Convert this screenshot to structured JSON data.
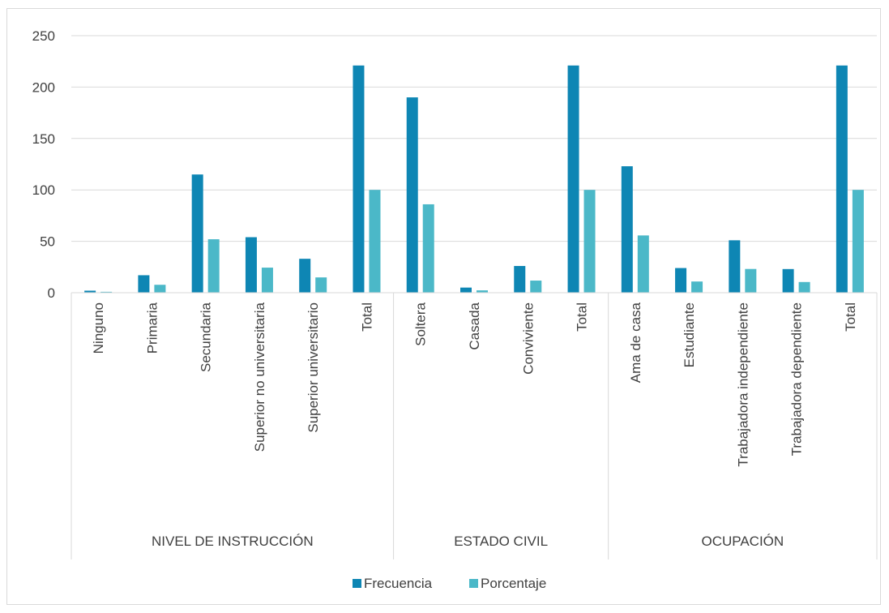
{
  "chart_data": {
    "type": "bar",
    "groups": [
      {
        "label": "NIVEL DE INSTRUCCIÓN",
        "categories": [
          "Ninguno",
          "Primaria",
          "Secundaria",
          "Superior no universitaria",
          "Superior universitario",
          "Total"
        ]
      },
      {
        "label": "ESTADO CIVIL",
        "categories": [
          "Soltera",
          "Casada",
          "Conviviente",
          "Total"
        ]
      },
      {
        "label": "OCUPACIÓN",
        "categories": [
          "Ama de casa",
          "Estudiante",
          "Trabajadora independiente",
          "Trabajadora dependiente",
          "Total"
        ]
      }
    ],
    "categories": [
      "Ninguno",
      "Primaria",
      "Secundaria",
      "Superior no universitaria",
      "Superior universitario",
      "Total",
      "Soltera",
      "Casada",
      "Conviviente",
      "Total",
      "Ama de casa",
      "Estudiante",
      "Trabajadora independiente",
      "Trabajadora dependiente",
      "Total"
    ],
    "series": [
      {
        "name": "Frecuencia",
        "color": "#0e86b4",
        "values": [
          2,
          17,
          115,
          54,
          33,
          221,
          190,
          5,
          26,
          221,
          123,
          24,
          51,
          23,
          221
        ]
      },
      {
        "name": "Porcentaje",
        "color": "#4bb8c8",
        "values": [
          0.9,
          7.7,
          52.0,
          24.4,
          14.9,
          100,
          86.0,
          2.3,
          11.8,
          100,
          55.7,
          10.9,
          23.1,
          10.4,
          100
        ]
      }
    ],
    "yticks": [
      "0",
      "50",
      "100",
      "150",
      "200",
      "250"
    ],
    "ylim": [
      0,
      250
    ],
    "grid": true,
    "legend_position": "bottom"
  }
}
